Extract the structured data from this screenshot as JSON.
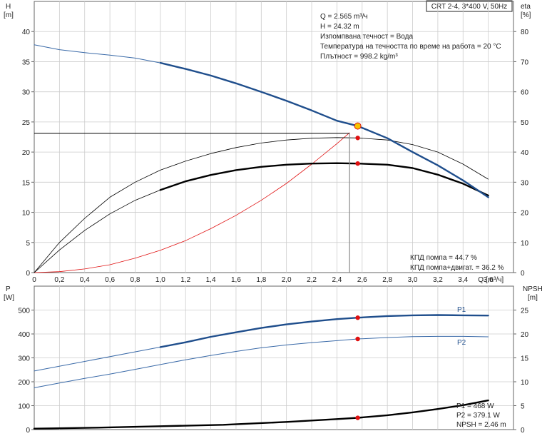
{
  "header": {
    "model": "CRT 2-4, 3*400 V, 50Hz"
  },
  "info_lines": [
    "Q = 2.565 m³/ч",
    "H = 24.32 m",
    "Изпомпвана течност = Вода",
    "Температура на течността по време на работа = 20 °C",
    "Плътност = 998.2 kg/m³"
  ],
  "eff_lines": [
    "КПД помпа = 44.7 %",
    "КПД помпа+двигат. = 36.2 %"
  ],
  "power_lines": [
    "P1 = 468 W",
    "P2 = 379.1 W",
    "NPSH = 2.46 m"
  ],
  "colors": {
    "blue": "#1f4e8c",
    "blue_thin": "#3a6aa8",
    "black": "#000000",
    "red": "#e01010",
    "marker_yellow": "#f5c400",
    "grid": "#cccccc"
  },
  "chart_data": [
    {
      "type": "line",
      "title": "",
      "x_label_unit": "Q [m³/ч]",
      "x_label": "Q",
      "x_unit": "[m³/ч]",
      "xlim": [
        0,
        3.8
      ],
      "x_ticks": [
        "0",
        "0,2",
        "0,4",
        "0,6",
        "0,8",
        "1,0",
        "1,2",
        "1,4",
        "1,6",
        "1,8",
        "2,0",
        "2,2",
        "2,4",
        "2,6",
        "2,8",
        "3,0",
        "3,2",
        "3,4",
        "3,6"
      ],
      "y_left_label": "H",
      "y_left_unit": "[m]",
      "y_left_lim": [
        0,
        45
      ],
      "y_left_ticks": [
        "0",
        "5",
        "10",
        "15",
        "20",
        "25",
        "30",
        "35",
        "40"
      ],
      "y_right_label": "eta",
      "y_right_unit": "[%]",
      "y_right_lim": [
        0,
        90
      ],
      "y_right_ticks": [
        "0",
        "10",
        "20",
        "30",
        "40",
        "50",
        "60",
        "70",
        "80"
      ],
      "grid": true,
      "series": [
        {
          "key": "head",
          "axis": "left",
          "thin_x": [
            0,
            0.2,
            0.4,
            0.6,
            0.8,
            1.0
          ],
          "thin_y": [
            37.8,
            37.0,
            36.5,
            36.1,
            35.6,
            34.8
          ],
          "x": [
            1.0,
            1.2,
            1.4,
            1.6,
            1.8,
            2.0,
            2.2,
            2.4,
            2.565,
            2.8,
            3.0,
            3.2,
            3.4,
            3.6
          ],
          "y": [
            34.8,
            33.8,
            32.7,
            31.4,
            30.0,
            28.5,
            26.9,
            25.2,
            24.32,
            22.3,
            20.0,
            17.8,
            15.3,
            12.5
          ]
        },
        {
          "key": "eta_pump",
          "axis": "right",
          "x": [
            0,
            0.2,
            0.4,
            0.6,
            0.8,
            1.0,
            1.2,
            1.4,
            1.6,
            1.8,
            2.0,
            2.2,
            2.4,
            2.565,
            2.8,
            3.0,
            3.2,
            3.4,
            3.6
          ],
          "y": [
            0,
            10,
            18,
            25,
            30,
            34,
            37,
            39.5,
            41.5,
            43,
            44,
            44.6,
            44.8,
            44.7,
            44,
            42.5,
            40,
            36,
            31
          ]
        },
        {
          "key": "eta_total",
          "axis": "right",
          "thin_x": [
            0,
            0.2,
            0.4,
            0.6,
            0.8,
            1.0
          ],
          "thin_y": [
            0,
            7.5,
            14,
            19.5,
            24,
            27.4
          ],
          "x": [
            1.0,
            1.2,
            1.4,
            1.6,
            1.8,
            2.0,
            2.2,
            2.4,
            2.565,
            2.8,
            3.0,
            3.2,
            3.4,
            3.6
          ],
          "y": [
            27.4,
            30.3,
            32.4,
            34,
            35.1,
            35.8,
            36.2,
            36.3,
            36.2,
            35.8,
            34.7,
            32.5,
            29.5,
            25.6
          ]
        },
        {
          "key": "system",
          "axis": "left",
          "x": [
            0,
            0.2,
            0.4,
            0.6,
            0.8,
            1.0,
            1.2,
            1.4,
            1.6,
            1.8,
            2.0,
            2.2,
            2.4,
            2.5
          ],
          "y": [
            0,
            0.15,
            0.6,
            1.3,
            2.4,
            3.7,
            5.3,
            7.3,
            9.5,
            12.0,
            14.8,
            18.0,
            21.4,
            23.2
          ]
        }
      ],
      "operating_point": {
        "x": 2.565,
        "y": 24.32
      },
      "duty_point": {
        "x": 2.5,
        "y": 23.1
      },
      "red_points": [
        {
          "axis": "left",
          "x": 2.565,
          "y": 22.35
        },
        {
          "axis": "left",
          "x": 2.565,
          "y": 18.1
        }
      ]
    },
    {
      "type": "line",
      "title": "",
      "xlim": [
        0,
        3.8
      ],
      "y_left_label": "P",
      "y_left_unit": "[W]",
      "y_left_lim": [
        0,
        600
      ],
      "y_left_ticks": [
        "0",
        "100",
        "200",
        "300",
        "400",
        "500"
      ],
      "y_right_label": "NPSH",
      "y_right_unit": "[m]",
      "y_right_lim": [
        0,
        30
      ],
      "y_right_ticks": [
        "0",
        "5",
        "10",
        "15",
        "20",
        "25"
      ],
      "grid": true,
      "series": [
        {
          "key": "P1",
          "name": "P1",
          "axis": "left",
          "thin_x": [
            0,
            1.0
          ],
          "thin_y": [
            245,
            345
          ],
          "x": [
            1.0,
            1.2,
            1.4,
            1.6,
            1.8,
            2.0,
            2.2,
            2.4,
            2.565,
            2.8,
            3.0,
            3.2,
            3.4,
            3.6
          ],
          "y": [
            345,
            365,
            388,
            407,
            425,
            440,
            452,
            462,
            468,
            475,
            478,
            479,
            478,
            477
          ]
        },
        {
          "key": "P2",
          "name": "P2",
          "axis": "left",
          "x": [
            0,
            0.2,
            0.4,
            0.6,
            0.8,
            1.0,
            1.2,
            1.4,
            1.6,
            1.8,
            2.0,
            2.2,
            2.4,
            2.565,
            2.8,
            3.0,
            3.2,
            3.4,
            3.6
          ],
          "y": [
            175,
            195,
            214,
            232,
            252,
            272,
            292,
            310,
            327,
            342,
            354,
            364,
            372,
            379.1,
            385,
            389,
            390,
            390,
            388
          ]
        },
        {
          "key": "NPSH",
          "axis": "right",
          "x": [
            0,
            0.5,
            1.0,
            1.5,
            2.0,
            2.4,
            2.565,
            2.8,
            3.0,
            3.2,
            3.4,
            3.6
          ],
          "y": [
            0.2,
            0.4,
            0.7,
            1.0,
            1.6,
            2.2,
            2.46,
            3.0,
            3.6,
            4.3,
            5.1,
            6.1
          ]
        }
      ],
      "red_points": [
        {
          "axis": "left",
          "x": 2.565,
          "y": 468
        },
        {
          "axis": "left",
          "x": 2.565,
          "y": 379.1
        },
        {
          "axis": "right",
          "x": 2.565,
          "y": 2.46
        }
      ]
    }
  ]
}
